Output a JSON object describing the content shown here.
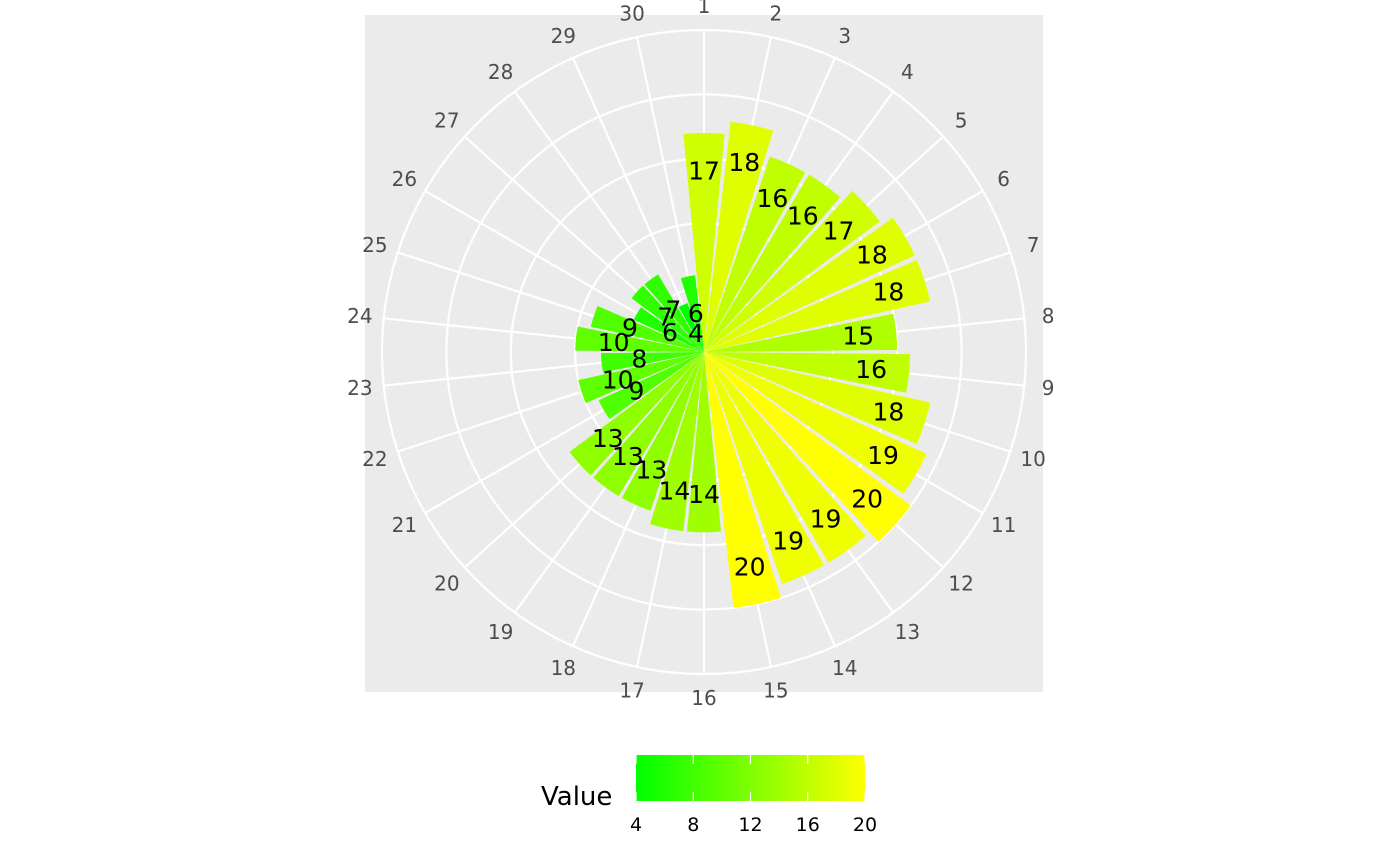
{
  "chart_data": {
    "type": "bar",
    "coord": "polar",
    "categories": [
      "1",
      "2",
      "3",
      "4",
      "5",
      "6",
      "7",
      "8",
      "9",
      "10",
      "11",
      "12",
      "13",
      "14",
      "15",
      "16",
      "17",
      "18",
      "19",
      "20",
      "21",
      "22",
      "23",
      "24",
      "25",
      "26",
      "27",
      "28",
      "29",
      "30"
    ],
    "values": [
      17,
      18,
      16,
      16,
      17,
      18,
      18,
      15,
      16,
      18,
      19,
      20,
      19,
      19,
      20,
      14,
      14,
      13,
      13,
      13,
      9,
      10,
      8,
      10,
      9,
      6,
      7,
      7,
      4,
      6
    ],
    "data_labels": [
      "17",
      "18",
      "16",
      "16",
      "17",
      "18",
      "18",
      "15",
      "16",
      "18",
      "19",
      "20",
      "19",
      "19",
      "20",
      "14",
      "14",
      "13",
      "13",
      "13",
      "9",
      "10",
      "8",
      "10",
      "9",
      "6",
      "7",
      "7",
      "4",
      "6"
    ],
    "radial_range": [
      0,
      25
    ],
    "grid": true,
    "panel_background": "#EBEBEB",
    "grid_color": "#FFFFFF",
    "color_scale": {
      "low": "#00FF00",
      "high": "#FFFF00",
      "limits": [
        4,
        20
      ]
    },
    "legend": {
      "title": "Value",
      "ticks": [
        "4",
        "8",
        "12",
        "16",
        "20"
      ],
      "tick_values": [
        4,
        8,
        12,
        16,
        20
      ],
      "position": "bottom"
    }
  }
}
